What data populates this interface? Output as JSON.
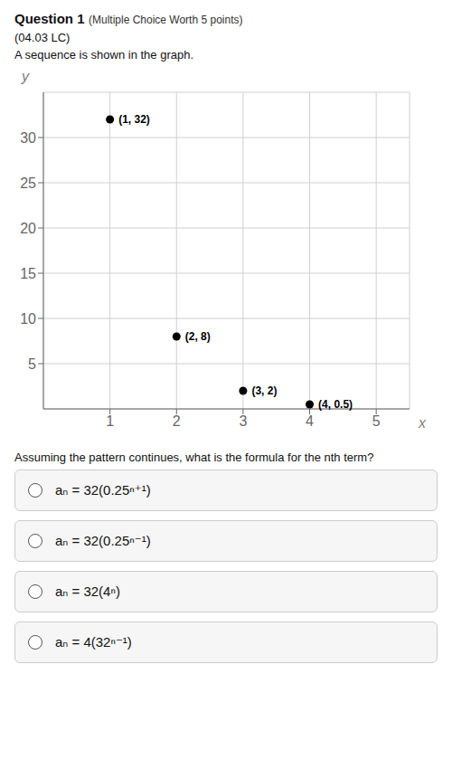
{
  "chart_data": {
    "type": "scatter",
    "title": "Question 1",
    "title_note": "(Multiple Choice Worth 5 points)",
    "subtitle": "(04.03 LC)",
    "description": "A sequence is shown in the graph.",
    "x_label": "x",
    "y_label": "y",
    "x": [
      1,
      2,
      3,
      4
    ],
    "values": [
      32,
      8,
      2,
      0.5
    ],
    "data_labels": true,
    "value_labels": [
      "(1, 32)",
      "(2, 8)",
      "(3, 2)",
      "(4, 0.5)"
    ],
    "color": "#000000",
    "xlim": [
      0,
      5.5
    ],
    "ylim": [
      0,
      35
    ],
    "xticks": [
      1,
      2,
      3,
      4,
      5
    ],
    "yticks": [
      5,
      10,
      15,
      20,
      25,
      30
    ],
    "grid": true,
    "question": "Assuming the pattern continues, what is the formula for the nth term?",
    "choices": [
      "aₙ = 32(0.25ⁿ⁺¹)",
      "aₙ = 32(0.25ⁿ⁻¹)",
      "aₙ = 32(4ⁿ)",
      "aₙ = 4(32ⁿ⁻¹)"
    ]
  }
}
